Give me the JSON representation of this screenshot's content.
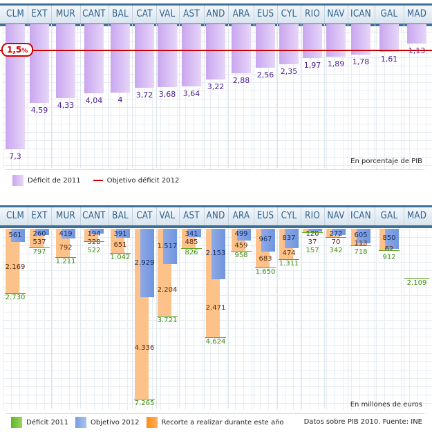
{
  "regions": [
    "CLM",
    "EXT",
    "MUR",
    "CANT",
    "BAL",
    "CAT",
    "VAL",
    "AST",
    "AND",
    "ARA",
    "EUS",
    "CYL",
    "RIO",
    "NAV",
    "ICAN",
    "GAL",
    "MAD"
  ],
  "chart_data": [
    {
      "type": "bar",
      "title": "",
      "categories": [
        "CLM",
        "EXT",
        "MUR",
        "CANT",
        "BAL",
        "CAT",
        "VAL",
        "AST",
        "AND",
        "ARA",
        "EUS",
        "CYL",
        "RIO",
        "NAV",
        "ICAN",
        "GAL",
        "MAD"
      ],
      "series": [
        {
          "name": "Déficit de 2011",
          "values": [
            7.3,
            4.59,
            4.33,
            4.04,
            4,
            3.72,
            3.68,
            3.64,
            3.22,
            2.88,
            2.56,
            2.35,
            1.97,
            1.89,
            1.78,
            1.61,
            1.13
          ],
          "labels": [
            "7,3",
            "4,59",
            "4,33",
            "4,04",
            "4",
            "3,72",
            "3,68",
            "3,64",
            "3,22",
            "2,88",
            "2,56",
            "2,35",
            "1,97",
            "1,89",
            "1,78",
            "1,61",
            "1,13"
          ]
        }
      ],
      "reference_line": {
        "name": "Objetivo déficit 2012",
        "value": 1.5,
        "label": "1,5",
        "unit": "%"
      },
      "unit_note": "En porcentaje de PIB",
      "ylim": [
        0,
        8
      ],
      "colors": {
        "bar": "#c9a6ef",
        "line": "#cc0000",
        "text": "#4b1d8f"
      },
      "legend": [
        "Déficit de 2011",
        "Objetivo déficit 2012"
      ],
      "legend_position": "bottom-left"
    },
    {
      "type": "bar",
      "title": "",
      "categories": [
        "CLM",
        "EXT",
        "MUR",
        "CANT",
        "BAL",
        "CAT",
        "VAL",
        "AST",
        "AND",
        "ARA",
        "EUS",
        "CYL",
        "RIO",
        "NAV",
        "ICAN",
        "GAL",
        "MAD"
      ],
      "series": [
        {
          "name": "Déficit 2011",
          "values": [
            2730,
            797,
            1211,
            522,
            1042,
            7265,
            3721,
            826,
            4624,
            958,
            1650,
            1311,
            157,
            342,
            718,
            912,
            2109
          ],
          "labels": [
            "2.730",
            "797",
            "1.211",
            "522",
            "1.042",
            "7.265",
            "3.721",
            "826",
            "4.624",
            "958",
            "1.650",
            "1.311",
            "157",
            "342",
            "718",
            "912",
            "2.109"
          ]
        },
        {
          "name": "Objetivo 2012",
          "values": [
            561,
            260,
            419,
            194,
            391,
            2929,
            1517,
            341,
            2153,
            499,
            967,
            837,
            120,
            272,
            605,
            850,
            null
          ],
          "labels": [
            "561",
            "260",
            "419",
            "194",
            "391",
            "2.929",
            "1.517",
            "341",
            "2.153",
            "499",
            "967",
            "837",
            "120",
            "272",
            "605",
            "850",
            ""
          ]
        },
        {
          "name": "Recorte a realizar durante este año",
          "values": [
            2169,
            537,
            792,
            328,
            651,
            4336,
            2204,
            485,
            2471,
            459,
            683,
            474,
            37,
            70,
            113,
            62,
            null
          ],
          "labels": [
            "2.169",
            "537",
            "792",
            "328",
            "651",
            "4.336",
            "2.204",
            "485",
            "2.471",
            "459",
            "683",
            "474",
            "37",
            "70",
            "113",
            "62",
            ""
          ]
        }
      ],
      "unit_note": "En millones de euros",
      "ylim": [
        0,
        7500
      ],
      "colors": {
        "deficit": "#5fa51a",
        "objetivo": "#7a9de0",
        "recorte": "#fcc28a"
      },
      "legend": [
        "Déficit 2011",
        "Objetivo 2012",
        "Recorte a realizar durante este año"
      ],
      "legend_position": "bottom-left"
    }
  ],
  "chart1": {
    "badge_value": "1,5",
    "badge_unit": "%",
    "unit_note": "En porcentaje de PIB",
    "legend": {
      "bar": "Déficit de 2011",
      "line": "Objetivo déficit 2012"
    }
  },
  "chart2": {
    "unit_note": "En millones de euros",
    "legend": {
      "deficit": "Déficit 2011",
      "objetivo": "Objetivo 2012",
      "recorte": "Recorte a realizar durante este año"
    },
    "source": "Datos sobre PIB 2010. Fuente: INE"
  }
}
